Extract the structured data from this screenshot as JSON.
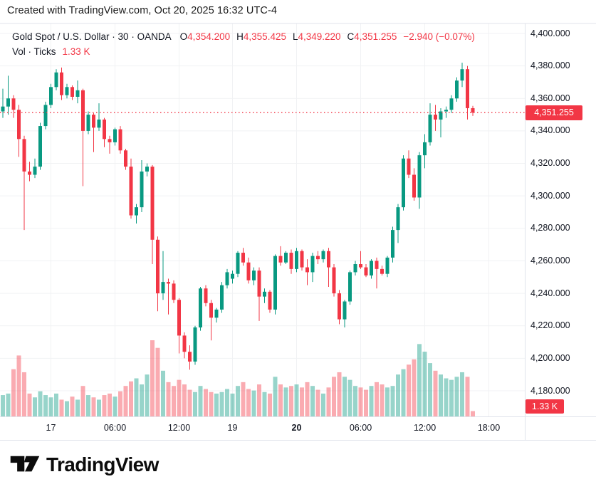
{
  "attribution": "Created with TradingView.com, Oct 20, 2025 16:32 UTC-4",
  "header": {
    "symbol_text": "Gold Spot / U.S. Dollar · 30 · OANDA",
    "ohlc": [
      {
        "label": "O",
        "value": "4,354.200"
      },
      {
        "label": "H",
        "value": "4,355.425"
      },
      {
        "label": "L",
        "value": "4,349.220"
      },
      {
        "label": "C",
        "value": "4,351.255"
      }
    ],
    "change": "−2.940 (−0.07%)",
    "vol_label": "Vol · Ticks",
    "vol_value": "1.33 K"
  },
  "axis": {
    "price_labels": [
      {
        "text": "4,400.000",
        "value": 4400
      },
      {
        "text": "4,380.000",
        "value": 4380
      },
      {
        "text": "4,360.000",
        "value": 4360
      },
      {
        "text": "4,340.000",
        "value": 4340
      },
      {
        "text": "4,320.000",
        "value": 4320
      },
      {
        "text": "4,300.000",
        "value": 4300
      },
      {
        "text": "4,280.000",
        "value": 4280
      },
      {
        "text": "4,260.000",
        "value": 4260
      },
      {
        "text": "4,240.000",
        "value": 4240
      },
      {
        "text": "4,220.000",
        "value": 4220
      },
      {
        "text": "4,200.000",
        "value": 4200
      },
      {
        "text": "4,180.000",
        "value": 4180
      }
    ],
    "time_labels": [
      {
        "text": "17",
        "bar": 9,
        "bold": false
      },
      {
        "text": "06:00",
        "bar": 21,
        "bold": false
      },
      {
        "text": "12:00",
        "bar": 33,
        "bold": false
      },
      {
        "text": "19",
        "bar": 43,
        "bold": false
      },
      {
        "text": "20",
        "bar": 55,
        "bold": true
      },
      {
        "text": "06:00",
        "bar": 67,
        "bold": false
      },
      {
        "text": "12:00",
        "bar": 79,
        "bold": false
      },
      {
        "text": "18:00",
        "bar": 91,
        "bold": false
      }
    ],
    "last_price_label": "4,351.255",
    "last_vol_label": "1.33 K"
  },
  "chart_data": {
    "type": "candlestick+volume",
    "title": "Gold Spot / U.S. Dollar",
    "interval": "30 minutes",
    "exchange": "OANDA",
    "price_axis": {
      "min": 4180,
      "max": 4400,
      "step": 20
    },
    "last_price": 4351.255,
    "last_change": -2.94,
    "last_change_pct": -0.07,
    "last_volume_ticks": "1.33 K",
    "volume_note": "volume stored as relative height 0-1 of tallest bar",
    "bars": [
      [
        4352,
        4366,
        4348,
        4355,
        0.28
      ],
      [
        4355,
        4374,
        4350,
        4360,
        0.3
      ],
      [
        4360,
        4362,
        4348,
        4353,
        0.62
      ],
      [
        4353,
        4356,
        4324,
        4335,
        0.8
      ],
      [
        4335,
        4337,
        4279,
        4315,
        0.58
      ],
      [
        4315,
        4321,
        4309,
        4313,
        0.3
      ],
      [
        4313,
        4323,
        4311,
        4318,
        0.25
      ],
      [
        4318,
        4345,
        4316,
        4343,
        0.33
      ],
      [
        4343,
        4358,
        4341,
        4356,
        0.28
      ],
      [
        4356,
        4369,
        4354,
        4367,
        0.25
      ],
      [
        4367,
        4378,
        4365,
        4376,
        0.3
      ],
      [
        4376,
        4379,
        4359,
        4362,
        0.22
      ],
      [
        4362,
        4369,
        4360,
        4367,
        0.2
      ],
      [
        4367,
        4368,
        4359,
        4361,
        0.26
      ],
      [
        4361,
        4371,
        4357,
        4365,
        0.22
      ],
      [
        4365,
        4366,
        4306,
        4340,
        0.4
      ],
      [
        4340,
        4352,
        4338,
        4350,
        0.28
      ],
      [
        4350,
        4351,
        4327,
        4342,
        0.25
      ],
      [
        4342,
        4357,
        4340,
        4347,
        0.22
      ],
      [
        4347,
        4348,
        4330,
        4335,
        0.28
      ],
      [
        4335,
        4337,
        4326,
        4333,
        0.3
      ],
      [
        4333,
        4342,
        4331,
        4341,
        0.26
      ],
      [
        4341,
        4343,
        4326,
        4328,
        0.33
      ],
      [
        4328,
        4329,
        4316,
        4318,
        0.4
      ],
      [
        4318,
        4323,
        4286,
        4288,
        0.46
      ],
      [
        4288,
        4295,
        4283,
        4293,
        0.5
      ],
      [
        4293,
        4322,
        4290,
        4315,
        0.42
      ],
      [
        4315,
        4320,
        4312,
        4318,
        0.55
      ],
      [
        4318,
        4319,
        4258,
        4273,
        1.0
      ],
      [
        4273,
        4275,
        4229,
        4240,
        0.9
      ],
      [
        4240,
        4266,
        4236,
        4247,
        0.6
      ],
      [
        4247,
        4249,
        4227,
        4246,
        0.45
      ],
      [
        4246,
        4248,
        4234,
        4236,
        0.4
      ],
      [
        4236,
        4237,
        4203,
        4214,
        0.48
      ],
      [
        4214,
        4216,
        4200,
        4204,
        0.42
      ],
      [
        4204,
        4208,
        4193,
        4198,
        0.35
      ],
      [
        4198,
        4220,
        4196,
        4219,
        0.32
      ],
      [
        4219,
        4244,
        4217,
        4243,
        0.4
      ],
      [
        4243,
        4245,
        4232,
        4234,
        0.36
      ],
      [
        4234,
        4236,
        4211,
        4225,
        0.32
      ],
      [
        4225,
        4231,
        4222,
        4230,
        0.3
      ],
      [
        4230,
        4247,
        4228,
        4245,
        0.32
      ],
      [
        4245,
        4255,
        4243,
        4253,
        0.36
      ],
      [
        4249,
        4254,
        4246,
        4252,
        0.3
      ],
      [
        4252,
        4266,
        4250,
        4265,
        0.4
      ],
      [
        4265,
        4268,
        4257,
        4259,
        0.45
      ],
      [
        4259,
        4262,
        4246,
        4248,
        0.36
      ],
      [
        4248,
        4256,
        4245,
        4254,
        0.34
      ],
      [
        4254,
        4256,
        4223,
        4238,
        0.42
      ],
      [
        4238,
        4243,
        4234,
        4241,
        0.32
      ],
      [
        4241,
        4242,
        4228,
        4230,
        0.3
      ],
      [
        4230,
        4264,
        4227,
        4263,
        0.52
      ],
      [
        4263,
        4269,
        4257,
        4259,
        0.42
      ],
      [
        4259,
        4266,
        4258,
        4265,
        0.38
      ],
      [
        4265,
        4267,
        4252,
        4255,
        0.4
      ],
      [
        4255,
        4268,
        4253,
        4266,
        0.42
      ],
      [
        4266,
        4267,
        4254,
        4256,
        0.38
      ],
      [
        4256,
        4261,
        4245,
        4253,
        0.45
      ],
      [
        4253,
        4265,
        4247,
        4263,
        0.4
      ],
      [
        4263,
        4266,
        4258,
        4261,
        0.35
      ],
      [
        4261,
        4267,
        4259,
        4266,
        0.3
      ],
      [
        4266,
        4268,
        4244,
        4256,
        0.38
      ],
      [
        4256,
        4258,
        4238,
        4240,
        0.52
      ],
      [
        4240,
        4242,
        4221,
        4224,
        0.58
      ],
      [
        4224,
        4236,
        4219,
        4235,
        0.52
      ],
      [
        4235,
        4254,
        4233,
        4253,
        0.48
      ],
      [
        4253,
        4260,
        4251,
        4258,
        0.4
      ],
      [
        4258,
        4266,
        4255,
        4256,
        0.38
      ],
      [
        4256,
        4258,
        4250,
        4251,
        0.35
      ],
      [
        4251,
        4261,
        4249,
        4260,
        0.4
      ],
      [
        4260,
        4262,
        4243,
        4255,
        0.45
      ],
      [
        4255,
        4257,
        4251,
        4252,
        0.42
      ],
      [
        4252,
        4263,
        4250,
        4262,
        0.38
      ],
      [
        4262,
        4281,
        4259,
        4279,
        0.4
      ],
      [
        4279,
        4295,
        4271,
        4293,
        0.55
      ],
      [
        4293,
        4325,
        4291,
        4323,
        0.62
      ],
      [
        4323,
        4328,
        4311,
        4313,
        0.68
      ],
      [
        4313,
        4317,
        4297,
        4299,
        0.75
      ],
      [
        4299,
        4327,
        4292,
        4325,
        0.95
      ],
      [
        4325,
        4338,
        4317,
        4333,
        0.85
      ],
      [
        4333,
        4357,
        4331,
        4350,
        0.7
      ],
      [
        4350,
        4356,
        4340,
        4347,
        0.6
      ],
      [
        4347,
        4354,
        4336,
        4352,
        0.55
      ],
      [
        4352,
        4355,
        4348,
        4353,
        0.5
      ],
      [
        4353,
        4362,
        4351,
        4360,
        0.48
      ],
      [
        4360,
        4373,
        4358,
        4371,
        0.52
      ],
      [
        4371,
        4382,
        4367,
        4378,
        0.58
      ],
      [
        4378,
        4380,
        4347,
        4354,
        0.52
      ],
      [
        4354,
        4355.425,
        4349.22,
        4351.255,
        0.07
      ]
    ]
  },
  "colors": {
    "up": "#089981",
    "down": "#F23645",
    "grid": "#F1F2F4",
    "frame": "#E0E3EB",
    "text": "#131722",
    "accent_red": "#F23645",
    "background": "#FFFFFF",
    "logo_black": "#0C0C0C"
  },
  "logo": {
    "text": "TradingView"
  }
}
